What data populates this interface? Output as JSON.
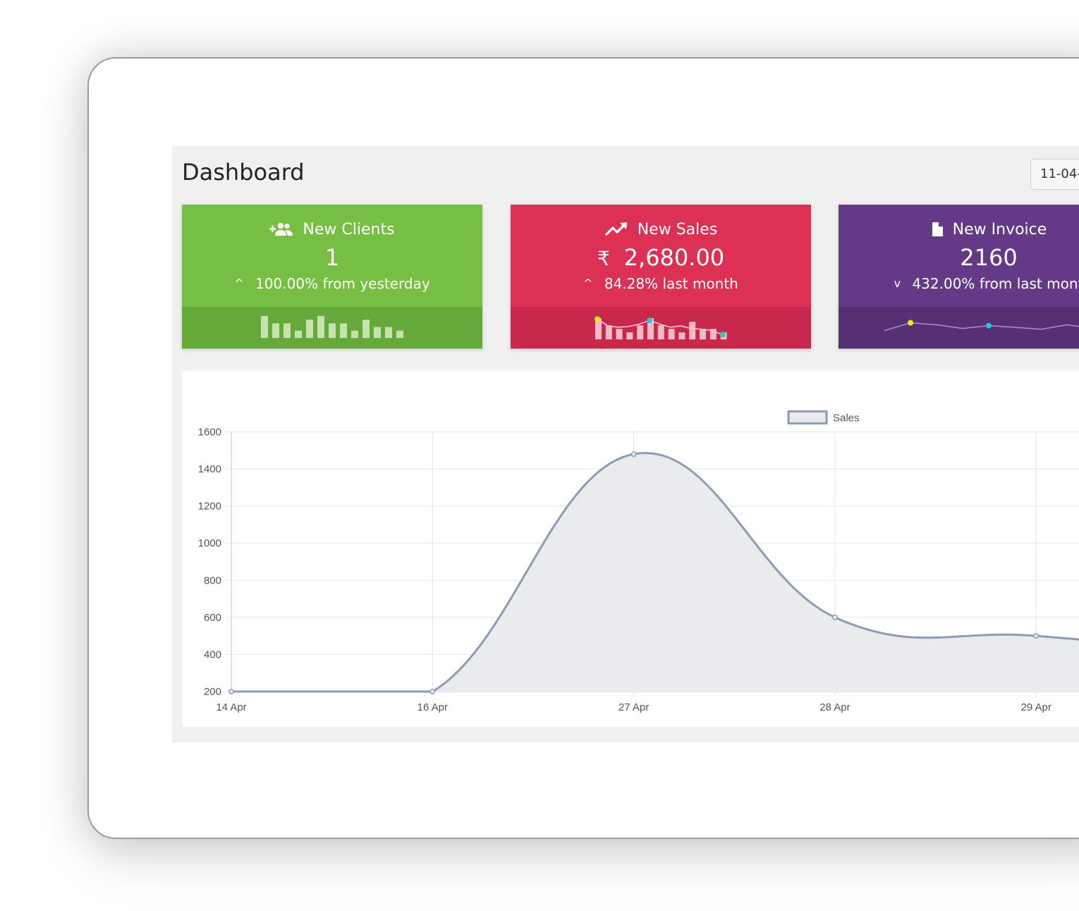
{
  "header": {
    "title": "Dashboard",
    "date_value": "11-04-"
  },
  "cards": {
    "clients": {
      "title": "New Clients",
      "icon": "user-plus-icon",
      "value": "1",
      "change_arrow": "^",
      "change_text": "100.00% from yesterday",
      "colors": {
        "top": "#76bf44",
        "bottom": "#65a93b"
      },
      "spark_bars": [
        6,
        4,
        4,
        2,
        5,
        6,
        4,
        4,
        2,
        5,
        3,
        3,
        2
      ]
    },
    "sales": {
      "title": "New Sales",
      "icon": "trending-up-icon",
      "currency_symbol": "₹",
      "value": "2,680.00",
      "change_arrow": "^",
      "change_text": "84.28% last month",
      "colors": {
        "top": "#dc3155",
        "bottom": "#c7284b"
      },
      "spark_bars": [
        6,
        4,
        3,
        2,
        4,
        6,
        4,
        3,
        2,
        5,
        3,
        3,
        2
      ],
      "spark_line": [
        6,
        4,
        3.6,
        3.8,
        4.5,
        5.6,
        4.5,
        3.6,
        4,
        3.2,
        3,
        2.6,
        1.4
      ]
    },
    "invoice": {
      "title": "New Invoice",
      "icon": "document-icon",
      "value": "2160",
      "change_arrow": "v",
      "change_text": "432.00% from last mont",
      "colors": {
        "top": "#643a86",
        "bottom": "#553073"
      },
      "spark_line": [
        2,
        5.5,
        4.6,
        3,
        4.2,
        3.5,
        2.6,
        4.6,
        3
      ]
    }
  },
  "chart_data": {
    "type": "area",
    "legend": [
      "Sales"
    ],
    "legend_position": "top-center",
    "categories": [
      "14 Apr",
      "16 Apr",
      "27 Apr",
      "28 Apr",
      "29 Apr"
    ],
    "series": [
      {
        "name": "Sales",
        "values": [
          200,
          200,
          1480,
          600,
          500
        ]
      }
    ],
    "y_ticks": [
      200,
      400,
      600,
      800,
      1000,
      1200,
      1400,
      1600
    ],
    "ylim": [
      200,
      1600
    ],
    "grid": true,
    "colors": {
      "line": "#8e9bb0",
      "fill": "#e9ebef",
      "grid": "#e5e5e5"
    }
  }
}
